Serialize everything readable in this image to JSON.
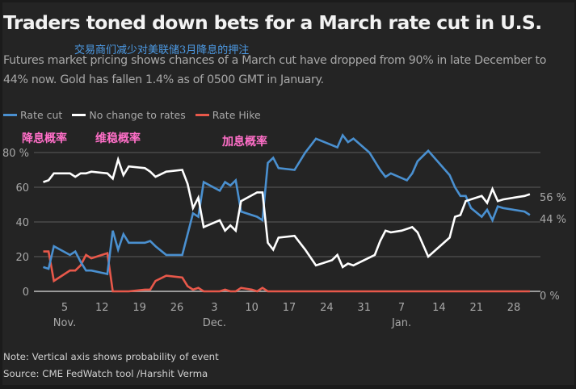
{
  "header": {
    "title": "Traders toned down bets for a March rate cut in U.S.",
    "chinese_subtitle": "交易商们减少对美联储3月降息的押注",
    "subtitle": "Futures market pricing shows chances of a March cut have dropped from 90% in late December to 44% now. Gold has fallen 1.4% as of 0500 GMT in January."
  },
  "legend": [
    {
      "label": "Rate cut",
      "color": "#4a90d0"
    },
    {
      "label": "No change to rates",
      "color": "#ffffff"
    },
    {
      "label": "Rate Hike",
      "color": "#e8584a"
    }
  ],
  "chinese_labels": {
    "rate_cut": "降息概率",
    "no_change": "维稳概率",
    "rate_hike": "加息概率"
  },
  "footer": {
    "note": "Note: Vertical axis shows probability of event",
    "source": "Source: CME FedWatch tool /Harshit Verma"
  },
  "chart_data": {
    "type": "line",
    "title": "Traders toned down bets for a March rate cut in U.S.",
    "xlabel": "",
    "ylabel": "Probability of event (%)",
    "x_unit": "days since Nov. 1",
    "xlim": [
      -1.7,
      92
    ],
    "ylim": [
      0,
      80
    ],
    "grid": true,
    "legend_position": "top-left",
    "y_ticks": [
      {
        "value": 0,
        "label": "0"
      },
      {
        "value": 20,
        "label": "20"
      },
      {
        "value": 40,
        "label": "40"
      },
      {
        "value": 60,
        "label": "60"
      },
      {
        "value": 80,
        "label": "80 %"
      }
    ],
    "x_ticks": [
      {
        "value": 4,
        "label": "5"
      },
      {
        "value": 11,
        "label": "12"
      },
      {
        "value": 18,
        "label": "19"
      },
      {
        "value": 25,
        "label": "26"
      },
      {
        "value": 32,
        "label": "3"
      },
      {
        "value": 39,
        "label": "10"
      },
      {
        "value": 46,
        "label": "17"
      },
      {
        "value": 53,
        "label": "24"
      },
      {
        "value": 60,
        "label": "31"
      },
      {
        "value": 67,
        "label": "7"
      },
      {
        "value": 74,
        "label": "14"
      },
      {
        "value": 81,
        "label": "21"
      },
      {
        "value": 88,
        "label": "28"
      }
    ],
    "month_labels": [
      {
        "value": 4,
        "label": "Nov."
      },
      {
        "value": 32,
        "label": "Dec."
      },
      {
        "value": 67,
        "label": "Jan."
      }
    ],
    "end_labels": [
      {
        "value": 56,
        "label": "56 %"
      },
      {
        "value": 44,
        "label": "44 %"
      },
      {
        "value": 0,
        "label": "0 %"
      }
    ],
    "series": [
      {
        "name": "Rate cut",
        "color": "#4a90d0",
        "points": [
          [
            0,
            14
          ],
          [
            1,
            13
          ],
          [
            2,
            26
          ],
          [
            5,
            21
          ],
          [
            6,
            23
          ],
          [
            7,
            17
          ],
          [
            8,
            12
          ],
          [
            9,
            12
          ],
          [
            12,
            10
          ],
          [
            13,
            35
          ],
          [
            14,
            24
          ],
          [
            15,
            33
          ],
          [
            16,
            28
          ],
          [
            19,
            28
          ],
          [
            20,
            29
          ],
          [
            21,
            26
          ],
          [
            23,
            21
          ],
          [
            26,
            21
          ],
          [
            28,
            45
          ],
          [
            29,
            43
          ],
          [
            30,
            63
          ],
          [
            33,
            58
          ],
          [
            34,
            63
          ],
          [
            35,
            61
          ],
          [
            36,
            64
          ],
          [
            37,
            46
          ],
          [
            40,
            43
          ],
          [
            41,
            41
          ],
          [
            42,
            74
          ],
          [
            43,
            77
          ],
          [
            44,
            71
          ],
          [
            47,
            70
          ],
          [
            49,
            80
          ],
          [
            51,
            88
          ],
          [
            55,
            83
          ],
          [
            56,
            90
          ],
          [
            57,
            86
          ],
          [
            58,
            88
          ],
          [
            61,
            80
          ],
          [
            63,
            70
          ],
          [
            64,
            66
          ],
          [
            65,
            68
          ],
          [
            68,
            64
          ],
          [
            69,
            68
          ],
          [
            70,
            75
          ],
          [
            72,
            81
          ],
          [
            76,
            67
          ],
          [
            77,
            60
          ],
          [
            78,
            55
          ],
          [
            79,
            55
          ],
          [
            80,
            48
          ],
          [
            82,
            43
          ],
          [
            83,
            47
          ],
          [
            84,
            41
          ],
          [
            85,
            49
          ],
          [
            86,
            48
          ],
          [
            90,
            46
          ],
          [
            91,
            44
          ]
        ]
      },
      {
        "name": "No change to rates",
        "color": "#ffffff",
        "points": [
          [
            0,
            63
          ],
          [
            1,
            64
          ],
          [
            2,
            68
          ],
          [
            5,
            68
          ],
          [
            6,
            66
          ],
          [
            7,
            68
          ],
          [
            8,
            68
          ],
          [
            9,
            69
          ],
          [
            12,
            68
          ],
          [
            13,
            65
          ],
          [
            14,
            76
          ],
          [
            15,
            67
          ],
          [
            16,
            72
          ],
          [
            19,
            71
          ],
          [
            20,
            69
          ],
          [
            21,
            66
          ],
          [
            23,
            69
          ],
          [
            26,
            70
          ],
          [
            27,
            62
          ],
          [
            28,
            48
          ],
          [
            29,
            54
          ],
          [
            30,
            37
          ],
          [
            33,
            41
          ],
          [
            34,
            35
          ],
          [
            35,
            38
          ],
          [
            36,
            35
          ],
          [
            37,
            52
          ],
          [
            40,
            57
          ],
          [
            41,
            57
          ],
          [
            42,
            28
          ],
          [
            43,
            24
          ],
          [
            44,
            31
          ],
          [
            47,
            32
          ],
          [
            49,
            24
          ],
          [
            51,
            15
          ],
          [
            54,
            18
          ],
          [
            55,
            21
          ],
          [
            56,
            14
          ],
          [
            57,
            16
          ],
          [
            58,
            15
          ],
          [
            62,
            21
          ],
          [
            63,
            29
          ],
          [
            64,
            35
          ],
          [
            65,
            34
          ],
          [
            67,
            35
          ],
          [
            69,
            37
          ],
          [
            70,
            34
          ],
          [
            72,
            20
          ],
          [
            76,
            31
          ],
          [
            77,
            43
          ],
          [
            78,
            44
          ],
          [
            79,
            52
          ],
          [
            82,
            55
          ],
          [
            83,
            51
          ],
          [
            84,
            59
          ],
          [
            85,
            52
          ],
          [
            86,
            53
          ],
          [
            90,
            55
          ],
          [
            91,
            56
          ]
        ]
      },
      {
        "name": "Rate Hike",
        "color": "#e8584a",
        "points": [
          [
            0,
            23
          ],
          [
            1,
            23
          ],
          [
            2,
            6
          ],
          [
            3.5,
            9
          ],
          [
            5,
            12
          ],
          [
            6,
            12
          ],
          [
            7,
            15
          ],
          [
            8,
            21
          ],
          [
            9,
            19
          ],
          [
            12,
            22
          ],
          [
            13,
            0
          ],
          [
            16,
            0
          ],
          [
            19,
            1
          ],
          [
            20,
            1
          ],
          [
            21,
            6
          ],
          [
            23,
            9
          ],
          [
            26,
            8
          ],
          [
            27,
            3
          ],
          [
            28,
            1
          ],
          [
            29,
            2
          ],
          [
            30,
            0
          ],
          [
            33,
            0
          ],
          [
            34,
            1
          ],
          [
            35,
            0
          ],
          [
            36,
            0
          ],
          [
            37,
            2
          ],
          [
            39,
            1
          ],
          [
            40,
            0
          ],
          [
            41,
            2
          ],
          [
            42,
            0
          ],
          [
            91,
            0
          ]
        ]
      }
    ]
  }
}
